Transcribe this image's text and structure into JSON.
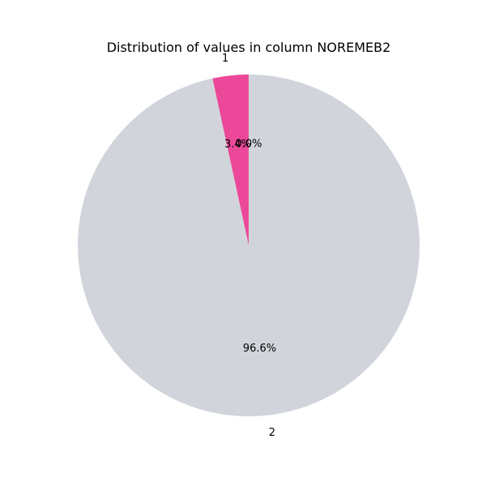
{
  "chart_data": {
    "type": "pie",
    "title": "Distribution of values in column NOREMEB2",
    "slices": [
      {
        "label": "1",
        "value": 3.4,
        "pct_label": "3.4%",
        "color": "#ec4899"
      },
      {
        "label": "2",
        "value": 96.6,
        "pct_label": "96.6%",
        "color": "#d1d5db"
      },
      {
        "label": "",
        "value": 0.0,
        "pct_label": "0.0%",
        "color": "#d1d5db"
      }
    ],
    "start_angle_deg": 90,
    "direction": "counterclockwise",
    "legend": "none"
  }
}
